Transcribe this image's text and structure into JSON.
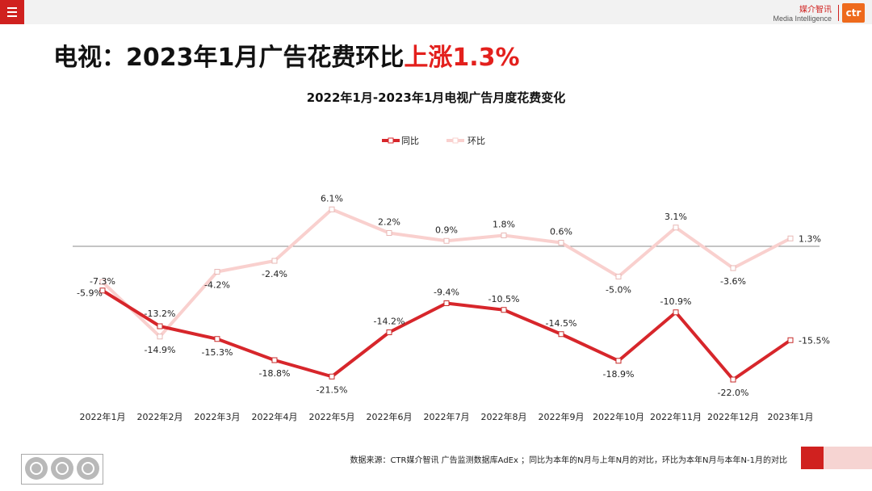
{
  "header": {
    "menu_icon": "hamburger-menu-icon",
    "brand_cn": "媒介智讯",
    "brand_en": "Media Intelligence",
    "logo_text": "ctr"
  },
  "headline": {
    "prefix": "电视：2023年1月广告花费环比",
    "highlight": "上涨1.3%"
  },
  "colors": {
    "accent": "#d0211f",
    "yoy_line": "#d7262b",
    "mom_line": "#f9d0ce"
  },
  "chart_data": {
    "type": "line",
    "title": "2022年1月-2023年1月电视广告月度花费变化",
    "categories": [
      "2022年1月",
      "2022年2月",
      "2022年3月",
      "2022年4月",
      "2022年5月",
      "2022年6月",
      "2022年7月",
      "2022年8月",
      "2022年9月",
      "2022年10月",
      "2022年11月",
      "2022年12月",
      "2023年1月"
    ],
    "series": [
      {
        "name": "同比",
        "values": [
          -7.3,
          -13.2,
          -15.3,
          -18.8,
          -21.5,
          -14.2,
          -9.4,
          -10.5,
          -14.5,
          -18.9,
          -10.9,
          -22.0,
          -15.5
        ],
        "labels": [
          "-7.3%",
          "-13.2%",
          "-15.3%",
          "-18.8%",
          "-21.5%",
          "-14.2%",
          "-9.4%",
          "-10.5%",
          "-14.5%",
          "-18.9%",
          "-10.9%",
          "-22.0%",
          "-15.5%"
        ]
      },
      {
        "name": "环比",
        "values": [
          -5.9,
          -14.9,
          -4.2,
          -2.4,
          6.1,
          2.2,
          0.9,
          1.8,
          0.6,
          -5.0,
          3.1,
          -3.6,
          1.3
        ],
        "labels": [
          "-5.9%",
          "-14.9%",
          "-4.2%",
          "-2.4%",
          "6.1%",
          "2.2%",
          "0.9%",
          "1.8%",
          "0.6%",
          "-5.0%",
          "3.1%",
          "-3.6%",
          "1.3%"
        ]
      }
    ],
    "legend_position": "top-center",
    "zero_line": true,
    "grid": false
  },
  "footer": {
    "source": "数据来源：CTR媒介智讯 广告监测数据库AdEx ；同比为本年的N月与上年N月的对比，环比为本年N月与本年N-1月的对比",
    "badge_text": "SGS"
  }
}
